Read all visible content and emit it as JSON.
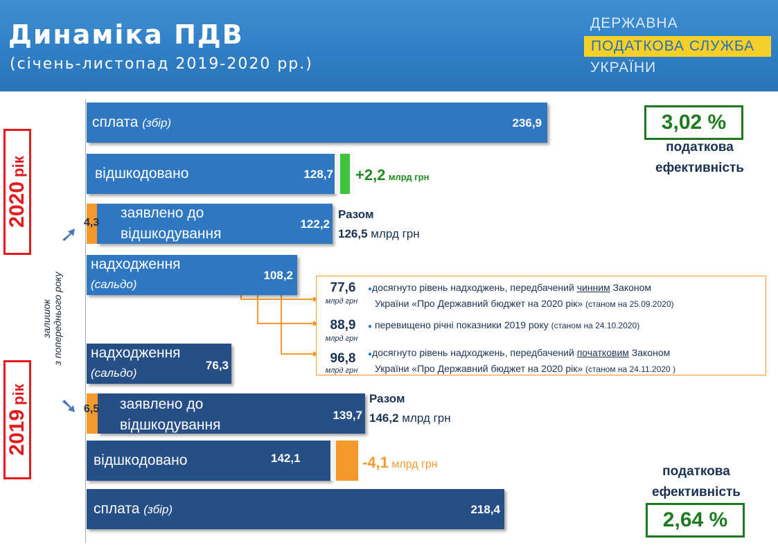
{
  "header": {
    "title": "Динаміка ПДВ",
    "subtitle": "(січень-листопад 2019-2020 рр.)",
    "logo_line1": "ДЕРЖАВНА",
    "logo_line2": "ПОДАТКОВА СЛУЖБА",
    "logo_line3": "УКРАЇНИ"
  },
  "years": {
    "y2020_num": "2020",
    "y2020_suffix": " рік",
    "y2019_num": "2019",
    "y2019_suffix": " рік"
  },
  "side_label": {
    "line1": "залишок",
    "line2": "з попереднього року"
  },
  "bars": {
    "payment_2020": {
      "label": "сплата",
      "label_italic": "(збір)",
      "value": "236,9"
    },
    "refunded_2020": {
      "label": "відшкодовано",
      "value": "128,7"
    },
    "claimed_2020": {
      "label_line1": "заявлено до",
      "label_line2": "відшкодування",
      "value": "122,2",
      "carryover": "4,3"
    },
    "receipts_2020": {
      "label_line1": "надходження",
      "label_line2": "(сальдо)",
      "value": "108,2"
    },
    "receipts_2019": {
      "label_line1": "надходження",
      "label_line2": "(сальдо)",
      "value": "76,3"
    },
    "claimed_2019": {
      "label_line1": "заявлено до",
      "label_line2": "відшкодування",
      "value": "139,7",
      "carryover": "6,5"
    },
    "refunded_2019": {
      "label": "відшкодовано",
      "value": "142,1"
    },
    "payment_2019": {
      "label": "сплата",
      "label_italic": "(збір)",
      "value": "218,4"
    }
  },
  "diffs": {
    "d2020_value": "+2,2",
    "d2020_unit": "млрд грн",
    "d2019_value": "-4,1",
    "d2019_unit": "млрд грн"
  },
  "totals": {
    "t2020_label": "Разом",
    "t2020_value": "126,5",
    "t2020_unit": "млрд грн",
    "t2019_label": "Разом",
    "t2019_value": "146,2",
    "t2019_unit": "млрд грн"
  },
  "efficiency": {
    "e2020_value": "3,02 %",
    "e2020_line1": "податкова",
    "e2020_line2": "ефективність",
    "e2019_value": "2,64 %",
    "e2019_line1": "податкова",
    "e2019_line2": "ефективність"
  },
  "notes": [
    {
      "num": "77,6",
      "unit": "млрд грн",
      "pre": "досягнуто рівень надходжень, передбачений ",
      "emph": "чинним",
      "post": " Законом",
      "line2": "України «Про Державний бюджет на 2020 рік»",
      "date": "(станом на 25.09.2020)"
    },
    {
      "num": "88,9",
      "unit": "млрд грн",
      "pre": "перевищено річні показники 2019 року",
      "emph": "",
      "post": "",
      "line2": "",
      "date": "(станом на 24.10.2020)"
    },
    {
      "num": "96,8",
      "unit": "млрд грн",
      "pre": "досягнуто рівень надходжень, передбачений ",
      "emph": "початковим",
      "post": " Законом",
      "line2": "України «Про Державний бюджет на 2020 рік»",
      "date": "(станом на 24.11.2020 )"
    }
  ],
  "colors": {
    "bar_2020": "#2f77c0",
    "bar_2019": "#254f86",
    "carryover": "#f6982a",
    "increase": "#3dc43d",
    "decrease": "#f6982a",
    "year_frame": "#e3191c",
    "efficiency_frame": "#1e7a1e"
  },
  "chart_data": {
    "type": "bar",
    "title": "Динаміка ПДВ",
    "subtitle": "(січень-листопад 2019-2020 рр.)",
    "unit": "млрд грн",
    "orientation": "horizontal",
    "series": [
      {
        "name": "2020 рік",
        "categories": [
          "сплата (збір)",
          "відшкодовано",
          "заявлено до відшкодування",
          "надходження (сальдо)"
        ],
        "values": [
          236.9,
          128.7,
          122.2,
          108.2
        ],
        "carryover": 4.3,
        "change_refunded": 2.2,
        "total_claimed": 126.5,
        "efficiency_percent": 3.02
      },
      {
        "name": "2019 рік",
        "categories": [
          "надходження (сальдо)",
          "заявлено до відшкодування",
          "відшкодовано",
          "сплата (збір)"
        ],
        "values": [
          76.3,
          139.7,
          142.1,
          218.4
        ],
        "carryover": 6.5,
        "change_refunded": -4.1,
        "total_claimed": 146.2,
        "efficiency_percent": 2.64
      }
    ],
    "milestones_2020": [
      77.6,
      88.9,
      96.8
    ]
  }
}
